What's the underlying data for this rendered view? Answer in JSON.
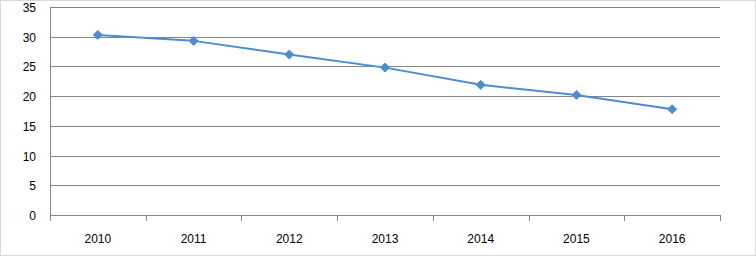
{
  "chart_data": {
    "type": "line",
    "categories": [
      "2010",
      "2011",
      "2012",
      "2013",
      "2014",
      "2015",
      "2016"
    ],
    "values": [
      30.3,
      29.3,
      27.0,
      24.8,
      21.9,
      20.2,
      17.8
    ],
    "color": "#4f8ccf",
    "marker": "diamond",
    "ylim": [
      0,
      35
    ],
    "yticks": [
      0,
      5,
      10,
      15,
      20,
      25,
      30,
      35
    ],
    "grid": true
  }
}
